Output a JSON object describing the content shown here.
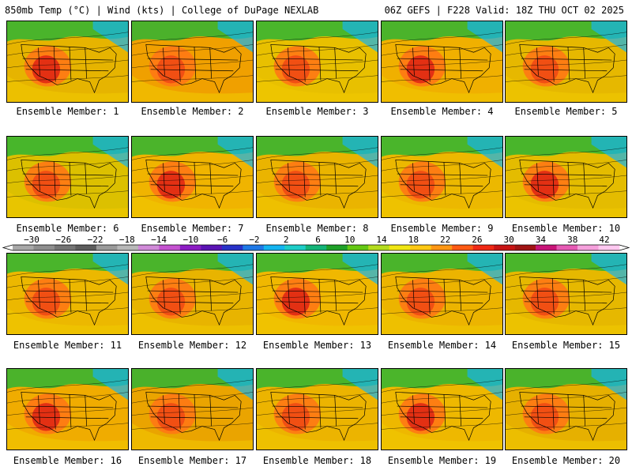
{
  "header": {
    "left": "850mb Temp (°C) | Wind (kts) | College of DuPage NEXLAB",
    "right": "06Z GEFS | F228 Valid: 18Z THU OCT 02 2025"
  },
  "colorbar": {
    "ticks": [
      "−30",
      "−26",
      "−22",
      "−18",
      "−14",
      "−10",
      "−6",
      "−2",
      "2",
      "6",
      "10",
      "14",
      "18",
      "22",
      "26",
      "30",
      "34",
      "38",
      "42"
    ],
    "colors": [
      "#a8a8a8",
      "#8e8e8e",
      "#747474",
      "#5c5c5c",
      "#9a9a9a",
      "#b8b8b8",
      "#d08ad8",
      "#c452d0",
      "#8c1cc4",
      "#5a14b4",
      "#2832c8",
      "#1e78e6",
      "#14b4f0",
      "#1ecdc8",
      "#14b478",
      "#1ea028",
      "#64c814",
      "#b4dc1e",
      "#f0e614",
      "#ffc814",
      "#ff9614",
      "#ff5a14",
      "#f02814",
      "#c81414",
      "#a01414",
      "#c81478",
      "#e65ab4",
      "#f5a0dc",
      "#ffc8f0"
    ]
  },
  "members": [
    {
      "label": "Ensemble Member: 1",
      "bg": "#e6b400"
    },
    {
      "label": "Ensemble Member: 2",
      "bg": "#f0a000"
    },
    {
      "label": "Ensemble Member: 3",
      "bg": "#e8c000"
    },
    {
      "label": "Ensemble Member: 4",
      "bg": "#f0b000"
    },
    {
      "label": "Ensemble Member: 5",
      "bg": "#e6b800"
    },
    {
      "label": "Ensemble Member: 6",
      "bg": "#dcc000"
    },
    {
      "label": "Ensemble Member: 7",
      "bg": "#f0b400"
    },
    {
      "label": "Ensemble Member: 8",
      "bg": "#eab400"
    },
    {
      "label": "Ensemble Member: 9",
      "bg": "#ecb800"
    },
    {
      "label": "Ensemble Member: 10",
      "bg": "#e4bc00"
    },
    {
      "label": "Ensemble Member: 11",
      "bg": "#ecb800"
    },
    {
      "label": "Ensemble Member: 12",
      "bg": "#e8b400"
    },
    {
      "label": "Ensemble Member: 13",
      "bg": "#f0b800"
    },
    {
      "label": "Ensemble Member: 14",
      "bg": "#ecb400"
    },
    {
      "label": "Ensemble Member: 15",
      "bg": "#e6b800"
    },
    {
      "label": "Ensemble Member: 16",
      "bg": "#f0ac00"
    },
    {
      "label": "Ensemble Member: 17",
      "bg": "#eaa400"
    },
    {
      "label": "Ensemble Member: 18",
      "bg": "#ecb400"
    },
    {
      "label": "Ensemble Member: 19",
      "bg": "#eeb800"
    },
    {
      "label": "Ensemble Member: 20",
      "bg": "#e6b000"
    }
  ]
}
